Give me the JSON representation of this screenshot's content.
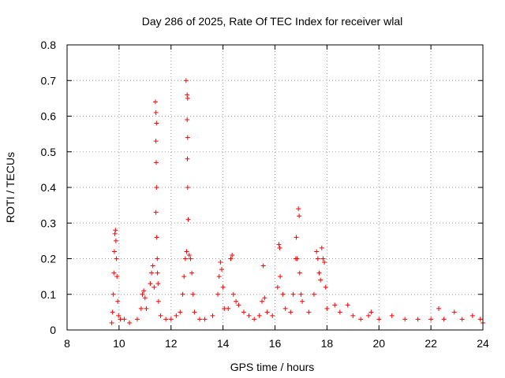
{
  "chart_data": {
    "type": "scatter",
    "title": "Day 286 of 2025, Rate Of TEC Index for receiver wlal",
    "xlabel": "GPS time / hours",
    "ylabel": "ROTI / TECUs",
    "xlim": [
      8,
      24
    ],
    "ylim": [
      0,
      0.8
    ],
    "x_ticks": [
      8,
      10,
      12,
      14,
      16,
      18,
      20,
      22,
      24
    ],
    "y_ticks": [
      0,
      0.1,
      0.2,
      0.3,
      0.4,
      0.5,
      0.6,
      0.7,
      0.8
    ],
    "grid": true,
    "marker": "+",
    "color": "#ff0000",
    "series": [
      {
        "name": "ROTI",
        "points": [
          [
            9.72,
            0.02
          ],
          [
            9.75,
            0.05
          ],
          [
            9.78,
            0.1
          ],
          [
            9.8,
            0.16
          ],
          [
            9.82,
            0.22
          ],
          [
            9.84,
            0.27
          ],
          [
            9.86,
            0.28
          ],
          [
            9.88,
            0.25
          ],
          [
            9.9,
            0.2
          ],
          [
            9.92,
            0.15
          ],
          [
            9.95,
            0.08
          ],
          [
            9.98,
            0.04
          ],
          [
            10.05,
            0.03
          ],
          [
            10.2,
            0.03
          ],
          [
            10.4,
            0.02
          ],
          [
            10.7,
            0.03
          ],
          [
            10.85,
            0.06
          ],
          [
            10.9,
            0.1
          ],
          [
            10.95,
            0.11
          ],
          [
            11.0,
            0.09
          ],
          [
            11.05,
            0.06
          ],
          [
            11.2,
            0.13
          ],
          [
            11.25,
            0.16
          ],
          [
            11.3,
            0.18
          ],
          [
            11.35,
            0.12
          ],
          [
            11.4,
            0.64
          ],
          [
            11.42,
            0.61
          ],
          [
            11.44,
            0.58
          ],
          [
            11.42,
            0.53
          ],
          [
            11.43,
            0.47
          ],
          [
            11.44,
            0.4
          ],
          [
            11.42,
            0.33
          ],
          [
            11.45,
            0.26
          ],
          [
            11.47,
            0.2
          ],
          [
            11.48,
            0.16
          ],
          [
            11.5,
            0.13
          ],
          [
            11.52,
            0.08
          ],
          [
            11.6,
            0.04
          ],
          [
            11.8,
            0.03
          ],
          [
            12.0,
            0.03
          ],
          [
            12.2,
            0.04
          ],
          [
            12.35,
            0.05
          ],
          [
            12.45,
            0.1
          ],
          [
            12.5,
            0.15
          ],
          [
            12.55,
            0.2
          ],
          [
            12.6,
            0.22
          ],
          [
            12.58,
            0.7
          ],
          [
            12.62,
            0.66
          ],
          [
            12.64,
            0.65
          ],
          [
            12.62,
            0.59
          ],
          [
            12.64,
            0.54
          ],
          [
            12.63,
            0.48
          ],
          [
            12.64,
            0.4
          ],
          [
            12.66,
            0.31
          ],
          [
            12.7,
            0.21
          ],
          [
            12.75,
            0.2
          ],
          [
            12.8,
            0.16
          ],
          [
            12.85,
            0.1
          ],
          [
            12.9,
            0.05
          ],
          [
            13.1,
            0.03
          ],
          [
            13.3,
            0.03
          ],
          [
            13.6,
            0.04
          ],
          [
            13.8,
            0.1
          ],
          [
            13.85,
            0.15
          ],
          [
            13.9,
            0.19
          ],
          [
            13.95,
            0.17
          ],
          [
            14.0,
            0.12
          ],
          [
            14.05,
            0.06
          ],
          [
            14.2,
            0.06
          ],
          [
            14.3,
            0.2
          ],
          [
            14.35,
            0.21
          ],
          [
            14.4,
            0.1
          ],
          [
            14.5,
            0.08
          ],
          [
            14.6,
            0.07
          ],
          [
            14.8,
            0.05
          ],
          [
            15.0,
            0.04
          ],
          [
            15.2,
            0.03
          ],
          [
            15.4,
            0.04
          ],
          [
            15.5,
            0.08
          ],
          [
            15.55,
            0.18
          ],
          [
            15.6,
            0.09
          ],
          [
            15.7,
            0.05
          ],
          [
            15.9,
            0.04
          ],
          [
            16.1,
            0.12
          ],
          [
            16.15,
            0.24
          ],
          [
            16.18,
            0.23
          ],
          [
            16.2,
            0.15
          ],
          [
            16.3,
            0.1
          ],
          [
            16.4,
            0.06
          ],
          [
            16.6,
            0.05
          ],
          [
            16.7,
            0.1
          ],
          [
            16.8,
            0.2
          ],
          [
            16.82,
            0.26
          ],
          [
            16.85,
            0.2
          ],
          [
            16.9,
            0.34
          ],
          [
            16.93,
            0.32
          ],
          [
            16.95,
            0.16
          ],
          [
            17.0,
            0.1
          ],
          [
            17.05,
            0.08
          ],
          [
            17.3,
            0.05
          ],
          [
            17.5,
            0.1
          ],
          [
            17.6,
            0.22
          ],
          [
            17.65,
            0.2
          ],
          [
            17.7,
            0.16
          ],
          [
            17.75,
            0.14
          ],
          [
            17.8,
            0.23
          ],
          [
            17.85,
            0.2
          ],
          [
            17.9,
            0.19
          ],
          [
            17.95,
            0.12
          ],
          [
            18.0,
            0.06
          ],
          [
            18.3,
            0.07
          ],
          [
            18.5,
            0.05
          ],
          [
            18.8,
            0.07
          ],
          [
            19.0,
            0.04
          ],
          [
            19.3,
            0.03
          ],
          [
            19.6,
            0.04
          ],
          [
            19.7,
            0.05
          ],
          [
            20.0,
            0.03
          ],
          [
            20.5,
            0.04
          ],
          [
            21.0,
            0.03
          ],
          [
            21.5,
            0.03
          ],
          [
            22.0,
            0.03
          ],
          [
            22.3,
            0.06
          ],
          [
            22.5,
            0.03
          ],
          [
            22.9,
            0.05
          ],
          [
            23.2,
            0.03
          ],
          [
            23.6,
            0.04
          ],
          [
            23.9,
            0.03
          ],
          [
            24.0,
            0.02
          ]
        ]
      }
    ]
  }
}
